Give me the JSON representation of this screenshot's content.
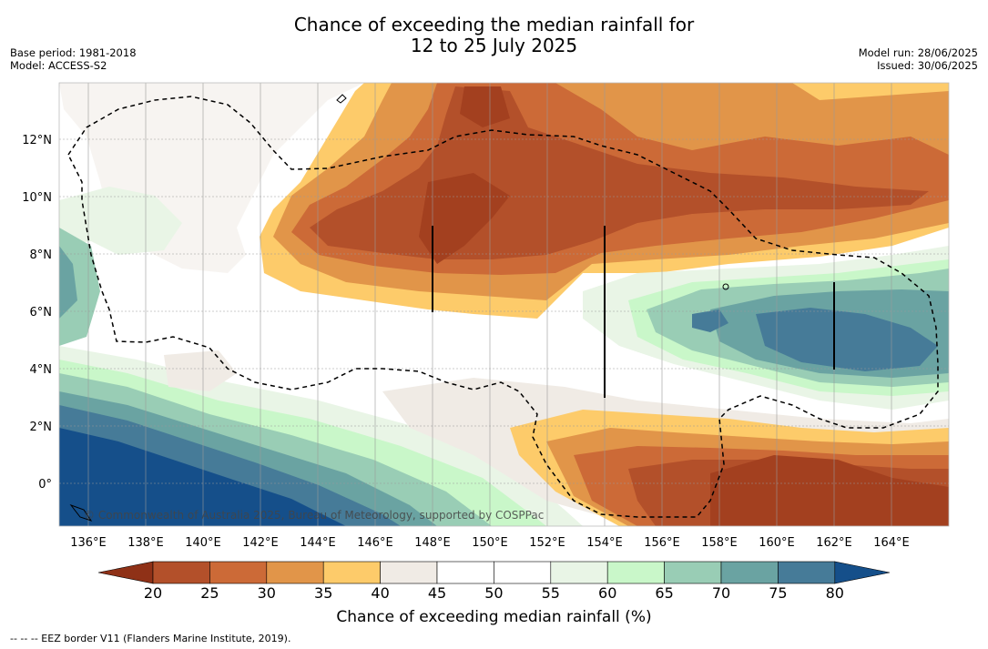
{
  "title_line1": "Chance of exceeding the median rainfall for",
  "title_line2": "12 to 25 July 2025",
  "base_period": "Base period: 1981-2018",
  "model": "Model: ACCESS-S2",
  "model_run": "Model run: 28/06/2025",
  "issued": "Issued: 30/06/2025",
  "lon_labels": [
    "136°E",
    "138°E",
    "140°E",
    "142°E",
    "144°E",
    "146°E",
    "148°E",
    "150°E",
    "152°E",
    "154°E",
    "156°E",
    "158°E",
    "160°E",
    "162°E",
    "164°E"
  ],
  "lat_labels": [
    "12°N",
    "10°N",
    "8°N",
    "6°N",
    "4°N",
    "2°N",
    "0°"
  ],
  "copyright": "© Commonwealth of Australia 2025, Bureau of Meteorology, supported by COSPPac",
  "colorbar": {
    "title": "Chance of exceeding median rainfall (%)",
    "ticks": [
      "20",
      "25",
      "30",
      "35",
      "40",
      "45",
      "50",
      "55",
      "60",
      "65",
      "70",
      "75",
      "80"
    ],
    "colors": [
      "#a3401f",
      "#b3502a",
      "#cc6a37",
      "#e19549",
      "#fdcb6a",
      "#f0ebe5",
      "#ffffff",
      "#ffffff",
      "#e9f5e6",
      "#c9f7c9",
      "#99cdb5",
      "#6aa3a2",
      "#467b98",
      "#154f8a"
    ],
    "under_color": "#8f3117",
    "over_color": "#154f8a"
  },
  "eez_legend": "--  --  -- EEZ border V11 (Flanders Marine Institute, 2019)."
}
